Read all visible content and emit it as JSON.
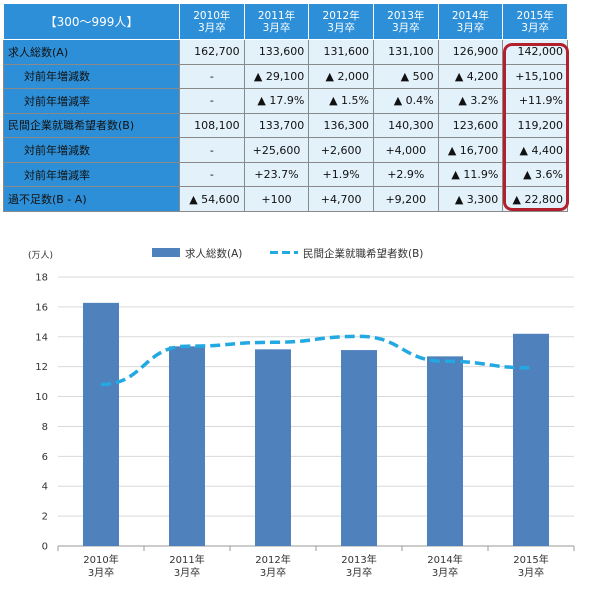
{
  "table": {
    "corner_label": "【300～999人】",
    "columns": [
      {
        "year": "2010年",
        "grad": "3月卒"
      },
      {
        "year": "2011年",
        "grad": "3月卒"
      },
      {
        "year": "2012年",
        "grad": "3月卒"
      },
      {
        "year": "2013年",
        "grad": "3月卒"
      },
      {
        "year": "2014年",
        "grad": "3月卒"
      },
      {
        "year": "2015年",
        "grad": "3月卒"
      }
    ],
    "rows": [
      {
        "label": "求人総数(A)",
        "sub": false,
        "cells": [
          "162,700",
          "133,600",
          "131,600",
          "131,100",
          "126,900",
          "142,000"
        ]
      },
      {
        "label": "対前年増減数",
        "sub": true,
        "cells": [
          "-",
          "▲ 29,100",
          "▲ 2,000",
          "▲ 500",
          "▲ 4,200",
          "+15,100"
        ]
      },
      {
        "label": "対前年増減率",
        "sub": true,
        "cells": [
          "-",
          "▲ 17.9%",
          "▲ 1.5%",
          "▲ 0.4%",
          "▲ 3.2%",
          "+11.9%"
        ]
      },
      {
        "label": "民間企業就職希望者数(B)",
        "sub": false,
        "cells": [
          "108,100",
          "133,700",
          "136,300",
          "140,300",
          "123,600",
          "119,200"
        ]
      },
      {
        "label": "対前年増減数",
        "sub": true,
        "cells": [
          "-",
          "+25,600",
          "+2,600",
          "+4,000",
          "▲ 16,700",
          "▲ 4,400"
        ]
      },
      {
        "label": "対前年増減率",
        "sub": true,
        "cells": [
          "-",
          "+23.7%",
          "+1.9%",
          "+2.9%",
          "▲ 11.9%",
          "▲ 3.6%"
        ]
      },
      {
        "label": "過不足数(B - A)",
        "sub": false,
        "cells": [
          "▲ 54,600",
          "+100",
          "+4,700",
          "+9,200",
          "▲ 3,300",
          "▲ 22,800"
        ]
      }
    ],
    "colors": {
      "header_bg": "#2d8fd8",
      "cell_bg": "#e3f1fb",
      "highlight": "#b3202d"
    }
  },
  "chart_data": {
    "type": "bar",
    "categories": [
      "2010年\n3月卒",
      "2011年\n3月卒",
      "2012年\n3月卒",
      "2013年\n3月卒",
      "2014年\n3月卒",
      "2015年\n3月卒"
    ],
    "series": [
      {
        "name": "求人総数(A)",
        "type": "bar",
        "color": "#4f81bd",
        "values": [
          16.27,
          13.36,
          13.16,
          13.11,
          12.69,
          14.2
        ]
      },
      {
        "name": "民間企業就職希望者数(B)",
        "type": "line",
        "style": "dashed",
        "color": "#23a9e1",
        "values": [
          10.81,
          13.37,
          13.63,
          14.03,
          12.36,
          11.92
        ]
      }
    ],
    "unit_label": "(万人)",
    "ylim": [
      0,
      18
    ],
    "yticks": [
      0,
      2,
      4,
      6,
      8,
      10,
      12,
      14,
      16,
      18
    ],
    "grid": true,
    "legend_position": "top"
  }
}
